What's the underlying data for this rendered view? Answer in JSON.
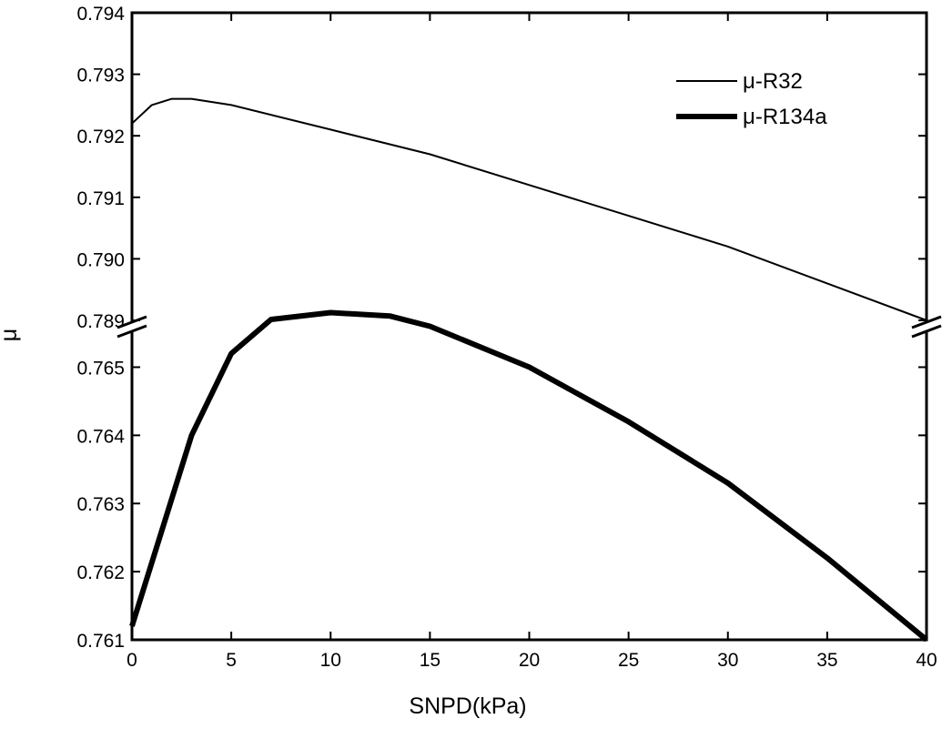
{
  "chart_data": {
    "type": "line",
    "title": "",
    "xlabel": "SNPD(kPa)",
    "ylabel": "μ",
    "xlim": [
      0,
      40
    ],
    "x_ticks": [
      "0",
      "5",
      "10",
      "15",
      "20",
      "25",
      "30",
      "35",
      "40"
    ],
    "axis_break": "between 0.789 and 0.7655",
    "upper_y_range": [
      0.789,
      0.794
    ],
    "upper_y_ticks": [
      "0.789",
      "0.790",
      "0.791",
      "0.792",
      "0.793",
      "0.794"
    ],
    "lower_y_range": [
      0.761,
      0.7655
    ],
    "lower_y_ticks": [
      "0.761",
      "0.762",
      "0.763",
      "0.764",
      "0.765"
    ],
    "legend_position": "top-right",
    "series": [
      {
        "name": "μ-R32",
        "line": "thin",
        "x": [
          0,
          1,
          2,
          3,
          5,
          10,
          15,
          20,
          25,
          30,
          35,
          40
        ],
        "y": [
          0.7922,
          0.7925,
          0.7926,
          0.7926,
          0.7925,
          0.7921,
          0.7917,
          0.7912,
          0.7907,
          0.7902,
          0.7896,
          0.789
        ]
      },
      {
        "name": "μ-R134a",
        "line": "thick",
        "x": [
          0,
          3,
          5,
          7,
          10,
          13,
          15,
          20,
          25,
          30,
          35,
          40
        ],
        "y": [
          0.7612,
          0.764,
          0.7652,
          0.7657,
          0.7658,
          0.76575,
          0.7656,
          0.765,
          0.7642,
          0.7633,
          0.7622,
          0.761
        ]
      }
    ]
  }
}
